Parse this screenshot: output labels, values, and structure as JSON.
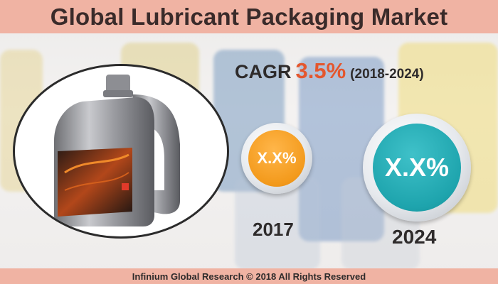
{
  "title": "Global Lubricant Packaging Market",
  "cagr": {
    "label": "CAGR",
    "value": "3.5%",
    "period": "(2018-2024)"
  },
  "bubbles": [
    {
      "value": "X.X%",
      "year": "2017",
      "color": "#f39a1c"
    },
    {
      "value": "X.X%",
      "year": "2024",
      "color": "#1ea4ad"
    }
  ],
  "footer": "Infinium Global Research © 2018 All Rights Reserved",
  "colors": {
    "banner": "#f0b3a3",
    "accent": "#e4572e"
  },
  "icons": {
    "product": "lubricant-bottle-icon"
  }
}
